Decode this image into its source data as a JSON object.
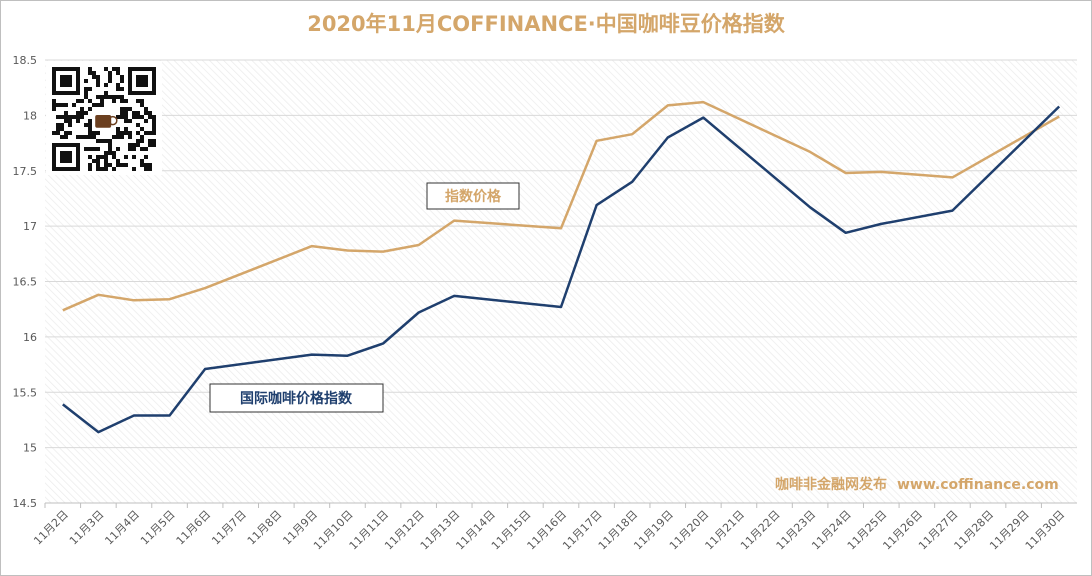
{
  "chart_data": {
    "type": "line",
    "title": "2020年11月COFFINANCE·中国咖啡豆价格指数",
    "categories": [
      "11月2日",
      "11月3日",
      "11月4日",
      "11月5日",
      "11月6日",
      "11月7日",
      "11月8日",
      "11月9日",
      "11月10日",
      "11月11日",
      "11月12日",
      "11月13日",
      "11月14日",
      "11月15日",
      "11月16日",
      "11月17日",
      "11月18日",
      "11月19日",
      "11月20日",
      "11月21日",
      "11月22日",
      "11月23日",
      "11月24日",
      "11月25日",
      "11月26日",
      "11月27日",
      "11月28日",
      "11月29日",
      "11月30日"
    ],
    "ylim": [
      14.5,
      18.5
    ],
    "yticks": [
      "14.5",
      "15",
      "15.5",
      "16",
      "16.5",
      "17",
      "17.5",
      "18",
      "18.5"
    ],
    "grid": true,
    "series": [
      {
        "name": "指数价格",
        "color": "#d4a66a",
        "x": [
          "11月2日",
          "11月3日",
          "11月4日",
          "11月5日",
          "11月6日",
          "11月9日",
          "11月10日",
          "11月11日",
          "11月12日",
          "11月13日",
          "11月16日",
          "11月17日",
          "11月18日",
          "11月19日",
          "11月20日",
          "11月23日",
          "11月24日",
          "11月25日",
          "11月27日",
          "11月30日"
        ],
        "values": [
          16.24,
          16.38,
          16.33,
          16.34,
          16.44,
          16.82,
          16.78,
          16.77,
          16.83,
          17.05,
          16.98,
          17.77,
          17.83,
          18.09,
          18.12,
          17.67,
          17.48,
          17.49,
          17.44,
          17.99
        ]
      },
      {
        "name": "国际咖啡价格指数",
        "color": "#1f3f6e",
        "x": [
          "11月2日",
          "11月3日",
          "11月4日",
          "11月5日",
          "11月6日",
          "11月9日",
          "11月10日",
          "11月11日",
          "11月12日",
          "11月13日",
          "11月16日",
          "11月17日",
          "11月18日",
          "11月19日",
          "11月20日",
          "11月23日",
          "11月24日",
          "11月25日",
          "11月27日",
          "11月30日"
        ],
        "values": [
          15.39,
          15.14,
          15.29,
          15.29,
          15.71,
          15.84,
          15.83,
          15.94,
          16.22,
          16.37,
          16.27,
          17.19,
          17.4,
          17.8,
          17.98,
          17.17,
          16.94,
          17.02,
          17.14,
          18.08
        ]
      }
    ]
  },
  "watermark": {
    "name": "咖啡非金融网发布",
    "url": "www.coffinance.com"
  },
  "colors": {
    "title": "#d4a66a",
    "gold": "#d4a66a",
    "navy": "#1f3f6e",
    "axis_text": "#595959",
    "grid": "#d9d9d9"
  },
  "qr_icon": "qr-code-icon"
}
